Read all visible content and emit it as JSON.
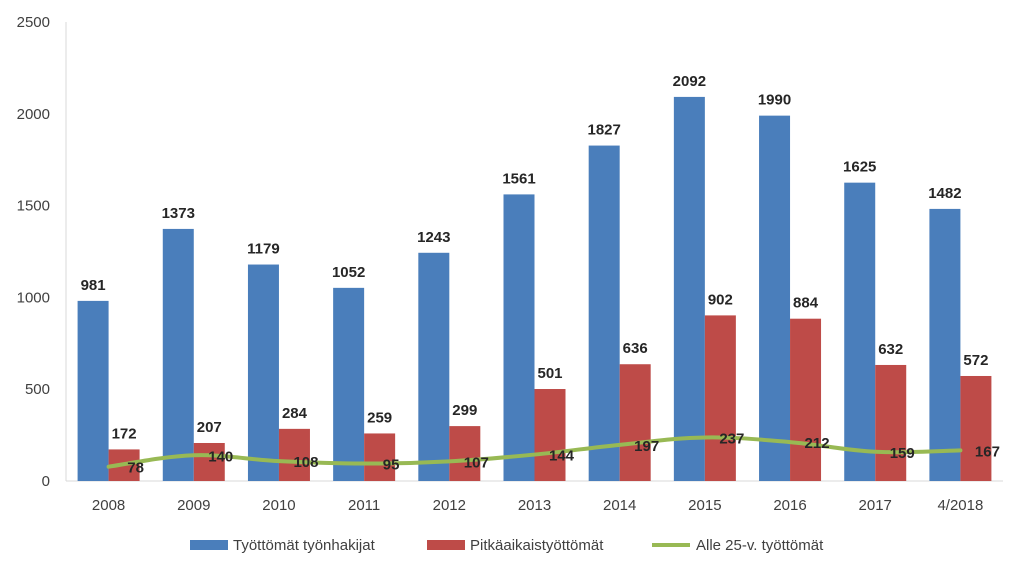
{
  "chart_data": {
    "type": "bar",
    "categories": [
      "2008",
      "2009",
      "2010",
      "2011",
      "2012",
      "2013",
      "2014",
      "2015",
      "2016",
      "2017",
      "4/2018"
    ],
    "series": [
      {
        "name": "Työttömät työnhakijat",
        "type": "bar",
        "color": "#4a7ebb",
        "values": [
          981,
          1373,
          1179,
          1052,
          1243,
          1561,
          1827,
          2092,
          1990,
          1625,
          1482
        ]
      },
      {
        "name": "Pitkäaikaistyöttömät",
        "type": "bar",
        "color": "#be4b48",
        "values": [
          172,
          207,
          284,
          259,
          299,
          501,
          636,
          902,
          884,
          632,
          572
        ]
      },
      {
        "name": "Alle 25-v. työttömät",
        "type": "line",
        "color": "#98b954",
        "values": [
          78,
          140,
          108,
          95,
          107,
          144,
          197,
          237,
          212,
          159,
          167
        ]
      }
    ],
    "yticks": [
      "0",
      "500",
      "1000",
      "1500",
      "2000",
      "2500"
    ],
    "ylim": [
      0,
      2500
    ],
    "grid": false,
    "legend_position": "bottom"
  }
}
